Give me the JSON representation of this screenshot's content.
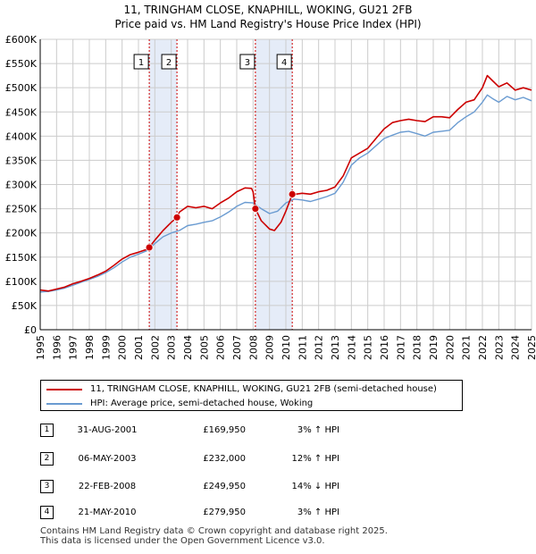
{
  "title": "11, TRINGHAM CLOSE, KNAPHILL, WOKING, GU21 2FB",
  "subtitle": "Price paid vs. HM Land Registry's House Price Index (HPI)",
  "colors": {
    "property": "#cc0000",
    "hpi": "#6a9bd1",
    "shade": "#dce6f5",
    "vline": "#cc0000"
  },
  "chart_data": {
    "type": "line",
    "xlim": [
      1995,
      2025
    ],
    "ylim": [
      0,
      600000
    ],
    "y_ticks": [
      {
        "v": 0,
        "label": "£0"
      },
      {
        "v": 50000,
        "label": "£50K"
      },
      {
        "v": 100000,
        "label": "£100K"
      },
      {
        "v": 150000,
        "label": "£150K"
      },
      {
        "v": 200000,
        "label": "£200K"
      },
      {
        "v": 250000,
        "label": "£250K"
      },
      {
        "v": 300000,
        "label": "£300K"
      },
      {
        "v": 350000,
        "label": "£350K"
      },
      {
        "v": 400000,
        "label": "£400K"
      },
      {
        "v": 450000,
        "label": "£450K"
      },
      {
        "v": 500000,
        "label": "£500K"
      },
      {
        "v": 550000,
        "label": "£550K"
      },
      {
        "v": 600000,
        "label": "£600K"
      }
    ],
    "x_ticks": [
      "1995",
      "1996",
      "1997",
      "1998",
      "1999",
      "2000",
      "2001",
      "2002",
      "2003",
      "2004",
      "2005",
      "2006",
      "2007",
      "2008",
      "2009",
      "2010",
      "2011",
      "2012",
      "2013",
      "2014",
      "2015",
      "2016",
      "2017",
      "2018",
      "2019",
      "2020",
      "2021",
      "2022",
      "2023",
      "2024",
      "2025"
    ],
    "shaded_spans": [
      [
        2001.66,
        2003.35
      ],
      [
        2008.14,
        2010.39
      ]
    ],
    "series": [
      {
        "name": "11, TRINGHAM CLOSE, KNAPHILL, WOKING, GU21 2FB (semi-detached house)",
        "x": [
          1995,
          1995.5,
          1996,
          1996.5,
          1997,
          1997.5,
          1998,
          1998.5,
          1999,
          1999.5,
          2000,
          2000.5,
          2001,
          2001.5,
          2001.66,
          2002,
          2002.5,
          2003,
          2003.35,
          2003.5,
          2004,
          2004.5,
          2005,
          2005.5,
          2006,
          2006.5,
          2007,
          2007.5,
          2007.9,
          2008,
          2008.14,
          2008.5,
          2009,
          2009.3,
          2009.7,
          2010,
          2010.39,
          2010.6,
          2011,
          2011.5,
          2012,
          2012.5,
          2013,
          2013.5,
          2014,
          2014.5,
          2015,
          2015.5,
          2016,
          2016.5,
          2017,
          2017.5,
          2018,
          2018.5,
          2019,
          2019.5,
          2020,
          2020.5,
          2021,
          2021.5,
          2022,
          2022.3,
          2022.6,
          2023,
          2023.5,
          2024,
          2024.5,
          2025
        ],
        "values": [
          82000,
          80000,
          84000,
          88000,
          95000,
          100000,
          106000,
          113000,
          121000,
          133000,
          146000,
          155000,
          160000,
          166000,
          169950,
          185000,
          205000,
          222000,
          232000,
          243000,
          255000,
          252000,
          255000,
          250000,
          262000,
          272000,
          285000,
          293000,
          292000,
          285000,
          249950,
          225000,
          208000,
          205000,
          222000,
          245000,
          279950,
          280000,
          282000,
          280000,
          285000,
          288000,
          295000,
          318000,
          355000,
          365000,
          375000,
          395000,
          415000,
          428000,
          432000,
          435000,
          432000,
          430000,
          440000,
          440000,
          438000,
          455000,
          470000,
          475000,
          500000,
          525000,
          515000,
          502000,
          510000,
          495000,
          500000,
          495000
        ]
      },
      {
        "name": "HPI: Average price, semi-detached house, Woking",
        "x": [
          1995,
          1995.5,
          1996,
          1996.5,
          1997,
          1997.5,
          1998,
          1998.5,
          1999,
          1999.5,
          2000,
          2000.5,
          2001,
          2001.5,
          2002,
          2002.5,
          2003,
          2003.5,
          2004,
          2004.5,
          2005,
          2005.5,
          2006,
          2006.5,
          2007,
          2007.5,
          2008,
          2008.5,
          2009,
          2009.5,
          2010,
          2010.5,
          2011,
          2011.5,
          2012,
          2012.5,
          2013,
          2013.5,
          2014,
          2014.5,
          2015,
          2015.5,
          2016,
          2016.5,
          2017,
          2017.5,
          2018,
          2018.5,
          2019,
          2019.5,
          2020,
          2020.5,
          2021,
          2021.5,
          2022,
          2022.3,
          2022.6,
          2023,
          2023.5,
          2024,
          2024.5,
          2025
        ],
        "values": [
          78000,
          79000,
          82000,
          86000,
          92000,
          98000,
          104000,
          110000,
          118000,
          128000,
          140000,
          150000,
          156000,
          163000,
          178000,
          192000,
          200000,
          205000,
          215000,
          218000,
          222000,
          225000,
          233000,
          243000,
          255000,
          263000,
          262000,
          250000,
          240000,
          245000,
          262000,
          270000,
          268000,
          265000,
          270000,
          275000,
          282000,
          305000,
          340000,
          355000,
          365000,
          380000,
          395000,
          402000,
          408000,
          410000,
          405000,
          400000,
          408000,
          410000,
          412000,
          428000,
          440000,
          450000,
          470000,
          485000,
          478000,
          470000,
          482000,
          475000,
          480000,
          473000
        ]
      }
    ],
    "sales": [
      {
        "n": "1",
        "x": 2001.66,
        "value": 169950
      },
      {
        "n": "2",
        "x": 2003.35,
        "value": 232000
      },
      {
        "n": "3",
        "x": 2008.14,
        "value": 249950
      },
      {
        "n": "4",
        "x": 2010.39,
        "value": 279950
      }
    ]
  },
  "legend": {
    "property": "11, TRINGHAM CLOSE, KNAPHILL, WOKING, GU21 2FB (semi-detached house)",
    "hpi": "HPI: Average price, semi-detached house, Woking"
  },
  "transactions": [
    {
      "n": "1",
      "date": "31-AUG-2001",
      "price": "£169,950",
      "hpi": "3% ↑ HPI"
    },
    {
      "n": "2",
      "date": "06-MAY-2003",
      "price": "£232,000",
      "hpi": "12% ↑ HPI"
    },
    {
      "n": "3",
      "date": "22-FEB-2008",
      "price": "£249,950",
      "hpi": "14% ↓ HPI"
    },
    {
      "n": "4",
      "date": "21-MAY-2010",
      "price": "£279,950",
      "hpi": "3% ↑ HPI"
    }
  ],
  "footer": {
    "line1": "Contains HM Land Registry data © Crown copyright and database right 2025.",
    "line2": "This data is licensed under the Open Government Licence v3.0."
  }
}
